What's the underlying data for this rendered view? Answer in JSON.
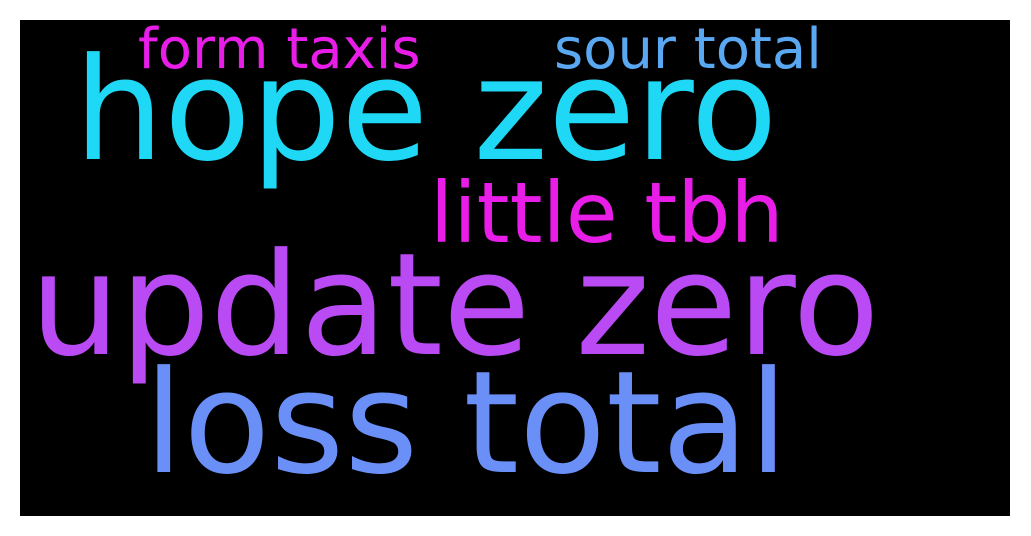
{
  "wordcloud": {
    "background": "#000000",
    "words": [
      {
        "text": "form taxis",
        "color": "#e81ee8"
      },
      {
        "text": "sour total",
        "color": "#5aa8f2"
      },
      {
        "text": "hope zero",
        "color": "#1fd8f5"
      },
      {
        "text": "little tbh",
        "color": "#e81ee8"
      },
      {
        "text": "update zero",
        "color": "#b94af4"
      },
      {
        "text": "loss total",
        "color": "#6a8ff7"
      }
    ]
  }
}
